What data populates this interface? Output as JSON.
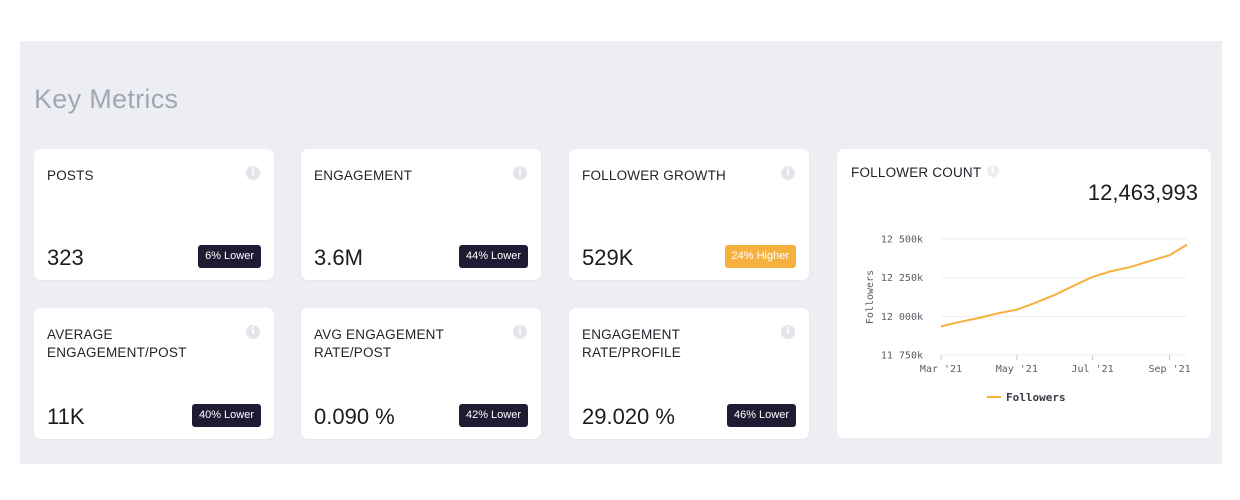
{
  "section_title": "Key Metrics",
  "cards": [
    {
      "label": "POSTS",
      "value": "323",
      "badge": "6% Lower",
      "trend": "lower"
    },
    {
      "label": "ENGAGEMENT",
      "value": "3.6M",
      "badge": "44% Lower",
      "trend": "lower"
    },
    {
      "label": "FOLLOWER GROWTH",
      "value": "529K",
      "badge": "24% Higher",
      "trend": "higher"
    },
    {
      "label": "AVERAGE ENGAGEMENT/POST",
      "value": "11K",
      "badge": "40% Lower",
      "trend": "lower"
    },
    {
      "label": "AVG ENGAGEMENT RATE/POST",
      "value": "0.090 %",
      "badge": "42% Lower",
      "trend": "lower"
    },
    {
      "label": "ENGAGEMENT RATE/PROFILE",
      "value": "29.020 %",
      "badge": "46% Lower",
      "trend": "lower"
    }
  ],
  "info_icon": "info-icon",
  "colors": {
    "lower_badge": "#1d1c33",
    "higher_badge": "#f6b03e",
    "series": "#f6b03e",
    "panel": "#eceef3"
  },
  "follower_count": {
    "label": "FOLLOWER COUNT",
    "total": "12,463,993"
  },
  "chart_data": {
    "type": "line",
    "ylabel": "Followers",
    "yticks": [
      "11 750k",
      "12 000k",
      "12 250k",
      "12 500k"
    ],
    "ytick_values": [
      11750000,
      12000000,
      12250000,
      12500000
    ],
    "ylim": [
      11750000,
      12500000
    ],
    "xticks": [
      "Mar '21",
      "May '21",
      "Jul '21",
      "Sep '21"
    ],
    "xtick_values": [
      "2021-03",
      "2021-05",
      "2021-07",
      "2021-09"
    ],
    "grid": true,
    "legend": "bottom",
    "series": [
      {
        "name": "Followers",
        "color": "#f6b03e",
        "x": [
          "2021-03-01",
          "2021-03-15",
          "2021-04-01",
          "2021-04-15",
          "2021-05-01",
          "2021-05-15",
          "2021-06-01",
          "2021-06-15",
          "2021-07-01",
          "2021-07-15",
          "2021-08-01",
          "2021-08-15",
          "2021-09-01",
          "2021-09-15"
        ],
        "y": [
          11935000,
          11962000,
          11990000,
          12018000,
          12043000,
          12085000,
          12140000,
          12195000,
          12255000,
          12290000,
          12320000,
          12355000,
          12395000,
          12464000
        ]
      }
    ]
  }
}
